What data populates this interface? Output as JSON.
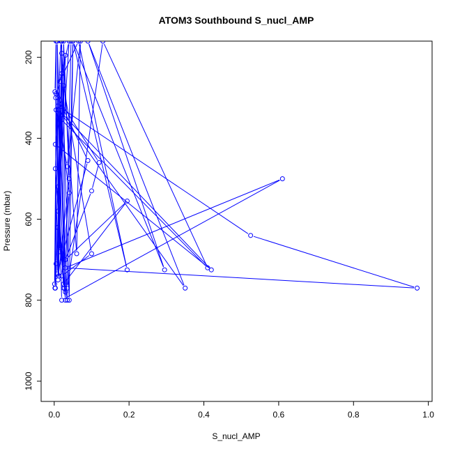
{
  "chart_data": {
    "type": "line",
    "title": "ATOM3 Southbound S_nucl_AMP",
    "xlabel": "S_nucl_AMP",
    "ylabel": "Pressure (mbar)",
    "xlim": [
      -0.035,
      1.01
    ],
    "ylim": [
      1050,
      160
    ],
    "y_reversed": true,
    "x_ticks": [
      0.0,
      0.2,
      0.4,
      0.6,
      0.8,
      1.0
    ],
    "x_tick_labels": [
      "0.0",
      "0.2",
      "0.4",
      "0.6",
      "0.8",
      "1.0"
    ],
    "y_ticks": [
      200,
      400,
      600,
      800,
      1000
    ],
    "y_tick_labels": [
      "200",
      "400",
      "600",
      "800",
      "1000"
    ],
    "grid": false,
    "series": [
      {
        "color": "#0000ff",
        "marker": "open-circle",
        "points": [
          {
            "x": 0.002,
            "y": 285
          },
          {
            "x": 0.005,
            "y": 160
          },
          {
            "x": 0.003,
            "y": 770
          },
          {
            "x": 0.03,
            "y": 195
          },
          {
            "x": 0.01,
            "y": 520
          },
          {
            "x": 0.025,
            "y": 770
          },
          {
            "x": 0.02,
            "y": 160
          },
          {
            "x": 0.015,
            "y": 680
          },
          {
            "x": 0.004,
            "y": 300
          },
          {
            "x": 0.04,
            "y": 160
          },
          {
            "x": 0.01,
            "y": 580
          },
          {
            "x": 0.03,
            "y": 800
          },
          {
            "x": 0.008,
            "y": 160
          },
          {
            "x": 0.012,
            "y": 740
          },
          {
            "x": 0.02,
            "y": 240
          },
          {
            "x": 0.001,
            "y": 760
          },
          {
            "x": 0.005,
            "y": 330
          },
          {
            "x": 0.035,
            "y": 470
          },
          {
            "x": 0.07,
            "y": 160
          },
          {
            "x": 0.06,
            "y": 685
          },
          {
            "x": 0.018,
            "y": 160
          },
          {
            "x": 0.003,
            "y": 475
          },
          {
            "x": 0.028,
            "y": 770
          },
          {
            "x": 0.025,
            "y": 160
          },
          {
            "x": 0.04,
            "y": 500
          },
          {
            "x": 0.01,
            "y": 750
          },
          {
            "x": 0.015,
            "y": 260
          },
          {
            "x": 0.065,
            "y": 160
          },
          {
            "x": 0.195,
            "y": 725
          },
          {
            "x": 0.05,
            "y": 160
          },
          {
            "x": 0.295,
            "y": 725
          },
          {
            "x": 0.09,
            "y": 160
          },
          {
            "x": 0.35,
            "y": 770
          },
          {
            "x": 0.012,
            "y": 330
          },
          {
            "x": 0.42,
            "y": 725
          },
          {
            "x": 0.003,
            "y": 415
          },
          {
            "x": 0.02,
            "y": 315
          },
          {
            "x": 0.12,
            "y": 460
          },
          {
            "x": 0.1,
            "y": 530
          },
          {
            "x": 0.03,
            "y": 700
          },
          {
            "x": 0.195,
            "y": 555
          },
          {
            "x": 0.025,
            "y": 760
          },
          {
            "x": 0.01,
            "y": 320
          },
          {
            "x": 0.525,
            "y": 640
          },
          {
            "x": 0.97,
            "y": 770
          },
          {
            "x": 0.03,
            "y": 720
          },
          {
            "x": 0.61,
            "y": 500
          },
          {
            "x": 0.02,
            "y": 800
          },
          {
            "x": 0.005,
            "y": 290
          },
          {
            "x": 0.09,
            "y": 455
          },
          {
            "x": 0.008,
            "y": 735
          },
          {
            "x": 0.02,
            "y": 190
          },
          {
            "x": 0.04,
            "y": 800
          },
          {
            "x": 0.05,
            "y": 160
          },
          {
            "x": 0.035,
            "y": 770
          },
          {
            "x": 0.13,
            "y": 160
          },
          {
            "x": 0.41,
            "y": 720
          },
          {
            "x": 0.015,
            "y": 350
          },
          {
            "x": 0.04,
            "y": 535
          },
          {
            "x": 0.02,
            "y": 740
          },
          {
            "x": 0.1,
            "y": 685
          },
          {
            "x": 0.025,
            "y": 270
          },
          {
            "x": 0.005,
            "y": 710
          },
          {
            "x": 0.002,
            "y": 770
          },
          {
            "x": 0.01,
            "y": 300
          },
          {
            "x": 0.035,
            "y": 800
          },
          {
            "x": 0.015,
            "y": 670
          },
          {
            "x": 0.02,
            "y": 160
          },
          {
            "x": 0.045,
            "y": 160
          },
          {
            "x": 0.03,
            "y": 780
          },
          {
            "x": 0.01,
            "y": 620
          }
        ]
      }
    ]
  }
}
